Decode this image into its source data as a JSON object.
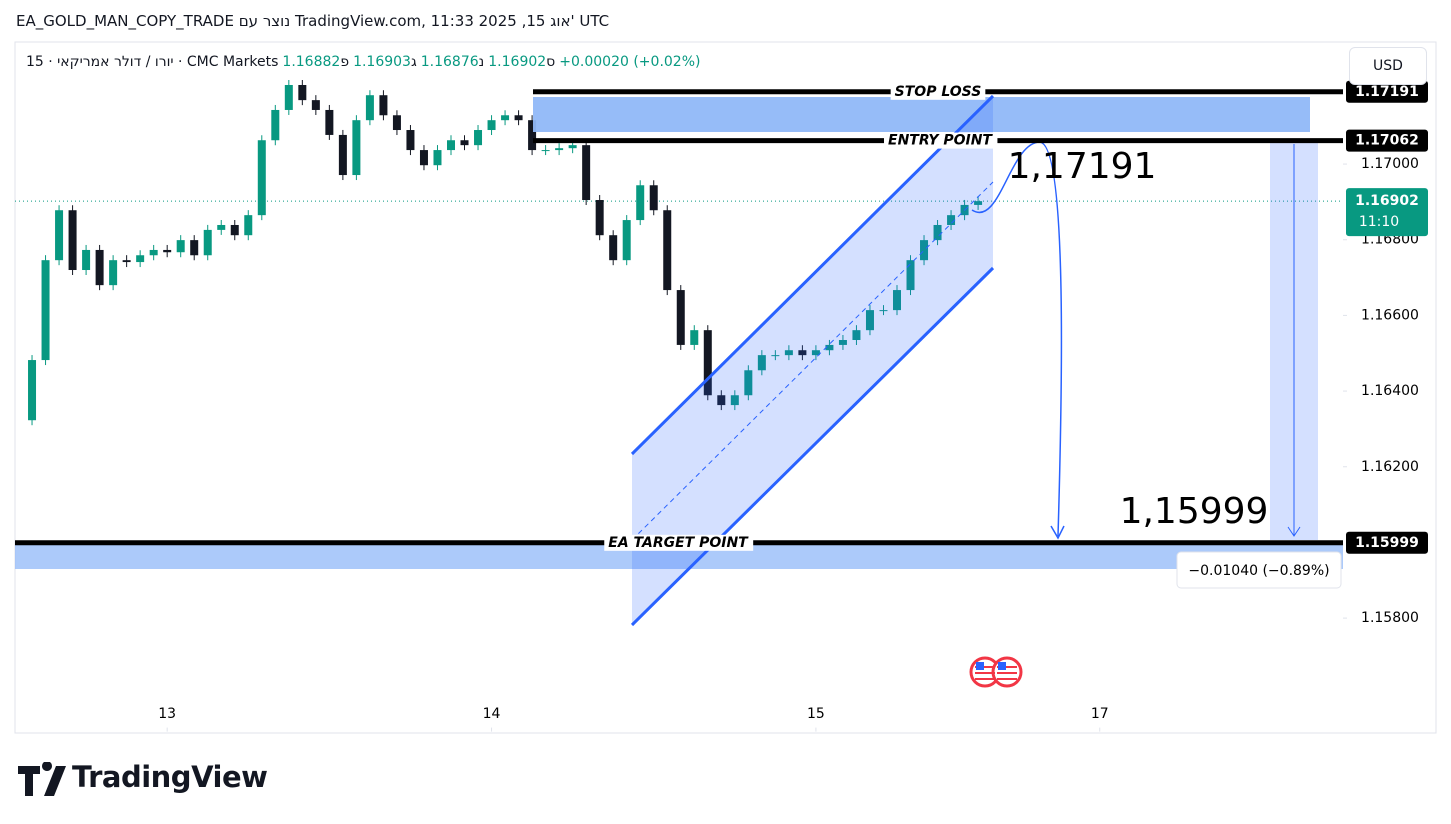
{
  "header": {
    "title": "EA_GOLD_MAN_COPY_TRADE נוצר עם TradingView.com, 11:33 2025 ,15 אוג' UTC"
  },
  "legend": {
    "symbol": "15 · יורו / דולר אמריקאי · CMC Markets",
    "ohlc": [
      {
        "label": "פ",
        "value": 1.16882
      },
      {
        "label": "ג",
        "value": 1.16903
      },
      {
        "label": "נ",
        "value": 1.16876
      },
      {
        "label": "ס",
        "value": 1.16902
      }
    ],
    "change": "+0.00020 (+0.02%)"
  },
  "currency": "USD",
  "chart_data": {
    "type": "candlestick",
    "up_color": "#089981",
    "down_color": "#131722",
    "x": [
      -11,
      -10,
      -9,
      -8,
      -7,
      -6,
      -5,
      -4,
      -3,
      -2,
      -1,
      0,
      1,
      2,
      3,
      4,
      5,
      6,
      7,
      8,
      9,
      10,
      11,
      12,
      13,
      14,
      15,
      16,
      17,
      18,
      19,
      20,
      21,
      22,
      23,
      24,
      25,
      26,
      27,
      28,
      29,
      30,
      31,
      32,
      33,
      34,
      35,
      36,
      37,
      38,
      39,
      40,
      41,
      42,
      43,
      44,
      45,
      46,
      47,
      48,
      49,
      50,
      51,
      52,
      53,
      54,
      55,
      56,
      57,
      58,
      59,
      60
    ],
    "close": [
      1.16323,
      1.16482,
      1.16746,
      1.16878,
      1.1672,
      1.16773,
      1.1668,
      1.16746,
      1.16741,
      1.16759,
      1.16773,
      1.16767,
      1.16799,
      1.16759,
      1.16826,
      1.16839,
      1.16812,
      1.16865,
      1.17063,
      1.17143,
      1.17209,
      1.17169,
      1.17143,
      1.17077,
      1.16971,
      1.17116,
      1.17182,
      1.17129,
      1.1709,
      1.17037,
      1.16997,
      1.17037,
      1.17063,
      1.1705,
      1.1709,
      1.17116,
      1.17129,
      1.17116,
      1.17037,
      1.17037,
      1.17042,
      1.1705,
      1.16905,
      1.16812,
      1.16746,
      1.16852,
      1.16944,
      1.16878,
      1.16667,
      1.16522,
      1.16561,
      1.16389,
      1.16363,
      1.16389,
      1.16455,
      1.16495,
      1.16495,
      1.16508,
      1.16495,
      1.16508,
      1.16522,
      1.16535,
      1.16561,
      1.16614,
      1.16614,
      1.16667,
      1.16746,
      1.16799,
      1.16839,
      1.16865,
      1.16892,
      1.16902
    ],
    "xlim": [
      -11.26,
      87
    ],
    "xticks": [
      {
        "value": 0,
        "label": "13"
      },
      {
        "value": 24,
        "label": "14"
      },
      {
        "value": 48,
        "label": "15"
      },
      {
        "value": 69,
        "label": "17"
      }
    ],
    "ylim": [
      1.155,
      1.1732
    ],
    "yticks": [
      {
        "value": 1.17,
        "label": "1.17000"
      },
      {
        "value": 1.168,
        "label": "1.16800"
      },
      {
        "value": 1.166,
        "label": "1.16600"
      },
      {
        "value": 1.164,
        "label": "1.16400"
      },
      {
        "value": 1.162,
        "label": "1.16200"
      },
      {
        "value": 1.158,
        "label": "1.15800"
      }
    ],
    "levels": [
      {
        "label": "STOP LOSS",
        "value": 1.17191
      },
      {
        "label": "ENTRY POINT",
        "value": 1.17062
      },
      {
        "label": "EA TARGET POINT",
        "value": 1.15999
      }
    ],
    "last_price": 1.16902,
    "countdown": "11:10",
    "annotations": [
      "1,17191",
      "1,15999"
    ],
    "measure_label": "−0.01040 (−0.89%)"
  },
  "footer": {
    "logo": "TradingView"
  }
}
